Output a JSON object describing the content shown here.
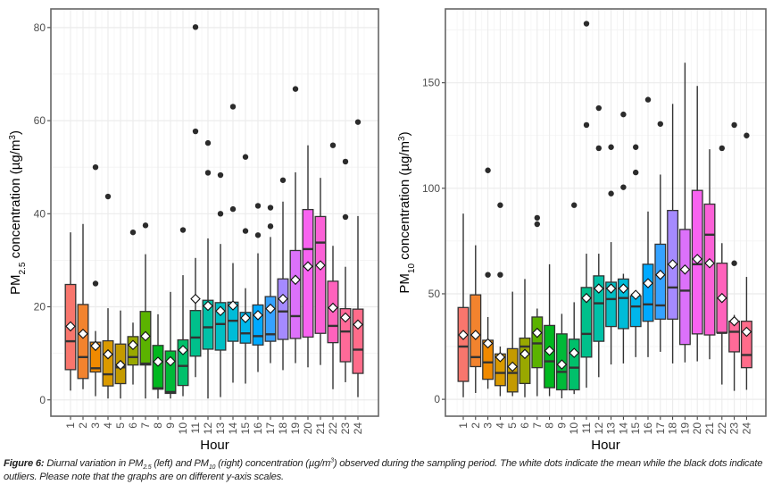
{
  "chart_data": [
    {
      "type": "box",
      "id": "pm25",
      "panel": "left",
      "title": "",
      "xlabel": "Hour",
      "ylabel_main": "PM",
      "ylabel_sub": "2.5",
      "ylabel_rest": " concentration (µg/m",
      "ylabel_sup": "3",
      "ylabel_close": ")",
      "ylim": [
        -3.5,
        84
      ],
      "yticks": [
        0,
        20,
        40,
        60,
        80
      ],
      "yminor": [
        10,
        30,
        50,
        70
      ],
      "categories": [
        "1",
        "2",
        "3",
        "4",
        "5",
        "6",
        "7",
        "8",
        "9",
        "10",
        "11",
        "12",
        "13",
        "14",
        "15",
        "16",
        "17",
        "18",
        "19",
        "20",
        "21",
        "22",
        "23",
        "24"
      ],
      "grid": true,
      "legend": "none",
      "series": [
        {
          "hour": "1",
          "color": "#F8766D",
          "whisker_low": 2,
          "q1": 6.5,
          "median": 12.6,
          "q3": 24.8,
          "whisker_high": 36,
          "mean": 15.8,
          "outliers": []
        },
        {
          "hour": "2",
          "color": "#F2832E",
          "whisker_low": 2.3,
          "q1": 4.6,
          "median": 9.2,
          "q3": 20.5,
          "whisker_high": 37.8,
          "mean": 14.2,
          "outliers": []
        },
        {
          "hour": "3",
          "color": "#F08A00",
          "whisker_low": 0.8,
          "q1": 6.0,
          "median": 6.8,
          "q3": 12.4,
          "whisker_high": 14.8,
          "mean": 11.6,
          "outliers": [
            25,
            50
          ]
        },
        {
          "hour": "4",
          "color": "#DA9A00",
          "whisker_low": 0.3,
          "q1": 3.0,
          "median": 5.5,
          "q3": 12.7,
          "whisker_high": 19.7,
          "mean": 9.8,
          "outliers": [
            43.7
          ]
        },
        {
          "hour": "5",
          "color": "#C49A00",
          "whisker_low": 0.3,
          "q1": 3.5,
          "median": 7.0,
          "q3": 12.0,
          "whisker_high": 19.2,
          "mean": 7.5,
          "outliers": []
        },
        {
          "hour": "6",
          "color": "#99A800",
          "whisker_low": 3.3,
          "q1": 7.5,
          "median": 9.2,
          "q3": 13.6,
          "whisker_high": 16.6,
          "mean": 11.8,
          "outliers": [
            36
          ]
        },
        {
          "hour": "7",
          "color": "#5BB300",
          "whisker_low": 0.3,
          "q1": 7.5,
          "median": 7.8,
          "q3": 19.0,
          "whisker_high": 31.3,
          "mean": 13.7,
          "outliers": [
            37.5
          ]
        },
        {
          "hour": "8",
          "color": "#00B81F",
          "whisker_low": 0.3,
          "q1": 2.3,
          "median": 2.5,
          "q3": 11.7,
          "whisker_high": 18.4,
          "mean": 8.2,
          "outliers": []
        },
        {
          "hour": "9",
          "color": "#00BA38",
          "whisker_low": 0.3,
          "q1": 1.4,
          "median": 1.7,
          "q3": 10.5,
          "whisker_high": 23.2,
          "mean": 8.3,
          "outliers": []
        },
        {
          "hour": "10",
          "color": "#00C06B",
          "whisker_low": 0.8,
          "q1": 3.1,
          "median": 7.3,
          "q3": 12.9,
          "whisker_high": 26.8,
          "mean": 10.7,
          "outliers": [
            36.5
          ]
        },
        {
          "hour": "11",
          "color": "#00C08B",
          "whisker_low": 4.9,
          "q1": 9.4,
          "median": 13.4,
          "q3": 19.2,
          "whisker_high": 30.5,
          "mean": 21.7,
          "outliers": [
            57.7,
            80.1
          ]
        },
        {
          "hour": "12",
          "color": "#00C1A7",
          "whisker_low": 0.3,
          "q1": 10.9,
          "median": 15.6,
          "q3": 21.4,
          "whisker_high": 34.7,
          "mean": 20.2,
          "outliers": [
            48.8,
            55.2
          ]
        },
        {
          "hour": "13",
          "color": "#00BFC4",
          "whisker_low": 0.6,
          "q1": 10.7,
          "median": 16.3,
          "q3": 20.9,
          "whisker_high": 33.5,
          "mean": 19.1,
          "outliers": [
            40,
            48.3
          ]
        },
        {
          "hour": "14",
          "color": "#00BCD8",
          "whisker_low": 3.7,
          "q1": 12.6,
          "median": 17.0,
          "q3": 21.0,
          "whisker_high": 29.4,
          "mean": 20.3,
          "outliers": [
            41,
            63
          ]
        },
        {
          "hour": "15",
          "color": "#00B6EB",
          "whisker_low": 3.5,
          "q1": 12.2,
          "median": 14.3,
          "q3": 18.8,
          "whisker_high": 24.0,
          "mean": 17.6,
          "outliers": [
            36.3,
            52.2
          ]
        },
        {
          "hour": "16",
          "color": "#00A9FF",
          "whisker_low": 6.0,
          "q1": 11.8,
          "median": 13.7,
          "q3": 20.4,
          "whisker_high": 31.5,
          "mean": 18.2,
          "outliers": [
            35.4,
            41.7
          ]
        },
        {
          "hour": "17",
          "color": "#35A2FF",
          "whisker_low": 7.9,
          "q1": 12.6,
          "median": 14.1,
          "q3": 22.2,
          "whisker_high": 35.0,
          "mean": 19.6,
          "outliers": [
            37.3,
            41.3
          ]
        },
        {
          "hour": "18",
          "color": "#A58AFF",
          "whisker_low": 6.4,
          "q1": 13.0,
          "median": 19.0,
          "q3": 26.0,
          "whisker_high": 42.6,
          "mean": 21.7,
          "outliers": [
            47.2
          ]
        },
        {
          "hour": "19",
          "color": "#DC71FA",
          "whisker_low": 7.9,
          "q1": 13.2,
          "median": 18.0,
          "q3": 32.1,
          "whisker_high": 48.9,
          "mean": 25.8,
          "outliers": [
            66.8
          ]
        },
        {
          "hour": "20",
          "color": "#F863F0",
          "whisker_low": 7.0,
          "q1": 13.5,
          "median": 32.4,
          "q3": 40.9,
          "whisker_high": 54.7,
          "mean": 28.7,
          "outliers": []
        },
        {
          "hour": "21",
          "color": "#FB61D7",
          "whisker_low": 7.5,
          "q1": 14.3,
          "median": 33.8,
          "q3": 39.4,
          "whisker_high": 47.7,
          "mean": 28.9,
          "outliers": []
        },
        {
          "hour": "22",
          "color": "#FF62BC",
          "whisker_low": 2.3,
          "q1": 12.3,
          "median": 15.9,
          "q3": 25.5,
          "whisker_high": 33.1,
          "mean": 19.8,
          "outliers": [
            54.7
          ]
        },
        {
          "hour": "23",
          "color": "#FF6A98",
          "whisker_low": 3.8,
          "q1": 8.2,
          "median": 14.7,
          "q3": 19.6,
          "whisker_high": 28.6,
          "mean": 17.7,
          "outliers": [
            39.3,
            51.2
          ]
        },
        {
          "hour": "24",
          "color": "#FF6C8A",
          "whisker_low": 0.6,
          "q1": 5.7,
          "median": 10.8,
          "q3": 19.5,
          "whisker_high": 39.5,
          "mean": 16.2,
          "outliers": [
            59.7
          ]
        }
      ]
    },
    {
      "type": "box",
      "id": "pm10",
      "panel": "right",
      "title": "",
      "xlabel": "Hour",
      "ylabel_main": "PM",
      "ylabel_sub": "10",
      "ylabel_rest": " concentration (µg/m",
      "ylabel_sup": "3",
      "ylabel_close": ")",
      "ylim": [
        -8,
        185
      ],
      "yticks": [
        0,
        50,
        100,
        150
      ],
      "yminor": [
        25,
        75,
        125,
        175
      ],
      "categories": [
        "1",
        "2",
        "3",
        "4",
        "5",
        "6",
        "7",
        "8",
        "9",
        "10",
        "11",
        "12",
        "13",
        "14",
        "15",
        "16",
        "17",
        "18",
        "19",
        "20",
        "21",
        "22",
        "23",
        "24"
      ],
      "grid": true,
      "legend": "none",
      "series": [
        {
          "hour": "1",
          "color": "#F8766D",
          "whisker_low": 1,
          "q1": 8.5,
          "median": 25,
          "q3": 43.5,
          "whisker_high": 88,
          "mean": 30.5,
          "outliers": []
        },
        {
          "hour": "2",
          "color": "#F2832E",
          "whisker_low": 3,
          "q1": 15.5,
          "median": 20,
          "q3": 49.5,
          "whisker_high": 73,
          "mean": 30.5,
          "outliers": []
        },
        {
          "hour": "3",
          "color": "#F08A00",
          "whisker_low": 5,
          "q1": 9.5,
          "median": 17.5,
          "q3": 28,
          "whisker_high": 39,
          "mean": 26.5,
          "outliers": [
            59,
            108.5
          ]
        },
        {
          "hour": "4",
          "color": "#DA9A00",
          "whisker_low": 1.5,
          "q1": 6.5,
          "median": 12.5,
          "q3": 21.5,
          "whisker_high": 25,
          "mean": 20,
          "outliers": [
            59,
            92
          ]
        },
        {
          "hour": "5",
          "color": "#C49A00",
          "whisker_low": 1.5,
          "q1": 3.5,
          "median": 12.5,
          "q3": 24,
          "whisker_high": 51,
          "mean": 15.5,
          "outliers": []
        },
        {
          "hour": "6",
          "color": "#99A800",
          "whisker_low": 1,
          "q1": 7.5,
          "median": 25,
          "q3": 29,
          "whisker_high": 57,
          "mean": 21.5,
          "outliers": []
        },
        {
          "hour": "7",
          "color": "#5BB300",
          "whisker_low": 1.5,
          "q1": 15,
          "median": 26.5,
          "q3": 39,
          "whisker_high": 43,
          "mean": 31.5,
          "outliers": [
            83,
            86
          ]
        },
        {
          "hour": "8",
          "color": "#00B81F",
          "whisker_low": 1.5,
          "q1": 5.5,
          "median": 18,
          "q3": 35,
          "whisker_high": 64,
          "mean": 23,
          "outliers": []
        },
        {
          "hour": "9",
          "color": "#00BA38",
          "whisker_low": 0.5,
          "q1": 4.5,
          "median": 13,
          "q3": 31,
          "whisker_high": 40.5,
          "mean": 16.5,
          "outliers": []
        },
        {
          "hour": "10",
          "color": "#00C06B",
          "whisker_low": 2.5,
          "q1": 4.5,
          "median": 15,
          "q3": 28.5,
          "whisker_high": 46,
          "mean": 22,
          "outliers": [
            92
          ]
        },
        {
          "hour": "11",
          "color": "#00C08B",
          "whisker_low": 5.5,
          "q1": 20,
          "median": 31,
          "q3": 53,
          "whisker_high": 69,
          "mean": 48,
          "outliers": [
            130,
            178
          ]
        },
        {
          "hour": "12",
          "color": "#00C1A7",
          "whisker_low": 10.5,
          "q1": 27.5,
          "median": 45.5,
          "q3": 58.5,
          "whisker_high": 69,
          "mean": 52.5,
          "outliers": [
            119,
            138
          ]
        },
        {
          "hour": "13",
          "color": "#00BFC4",
          "whisker_low": 16.5,
          "q1": 34.5,
          "median": 47.5,
          "q3": 55.5,
          "whisker_high": 74.5,
          "mean": 52.5,
          "outliers": [
            97.5,
            119.5
          ]
        },
        {
          "hour": "14",
          "color": "#00BCD8",
          "whisker_low": 17,
          "q1": 33.5,
          "median": 48,
          "q3": 57,
          "whisker_high": 59.5,
          "mean": 52.5,
          "outliers": [
            100.5,
            135
          ]
        },
        {
          "hour": "15",
          "color": "#00B6EB",
          "whisker_low": 20,
          "q1": 34.5,
          "median": 44,
          "q3": 49,
          "whisker_high": 49,
          "mean": 49.5,
          "outliers": [
            107.5,
            119.5
          ]
        },
        {
          "hour": "16",
          "color": "#00A9FF",
          "whisker_low": 20,
          "q1": 37,
          "median": 45,
          "q3": 64,
          "whisker_high": 89,
          "mean": 55,
          "outliers": [
            142
          ]
        },
        {
          "hour": "17",
          "color": "#35A2FF",
          "whisker_low": 22.5,
          "q1": 38,
          "median": 44.5,
          "q3": 73.5,
          "whisker_high": 106.5,
          "mean": 59,
          "outliers": [
            130.5
          ]
        },
        {
          "hour": "18",
          "color": "#A58AFF",
          "whisker_low": 17,
          "q1": 38,
          "median": 53,
          "q3": 89.5,
          "whisker_high": 140,
          "mean": 64,
          "outliers": []
        },
        {
          "hour": "19",
          "color": "#DC71FA",
          "whisker_low": 17.5,
          "q1": 26,
          "median": 51.5,
          "q3": 80.5,
          "whisker_high": 159.5,
          "mean": 61.5,
          "outliers": []
        },
        {
          "hour": "20",
          "color": "#F863F0",
          "whisker_low": 18,
          "q1": 31,
          "median": 64,
          "q3": 99,
          "whisker_high": 148.5,
          "mean": 66.5,
          "outliers": []
        },
        {
          "hour": "21",
          "color": "#FB61D7",
          "whisker_low": 19,
          "q1": 30.5,
          "median": 78,
          "q3": 92.5,
          "whisker_high": 118.5,
          "mean": 64.5,
          "outliers": []
        },
        {
          "hour": "22",
          "color": "#FF62BC",
          "whisker_low": 7,
          "q1": 31.5,
          "median": 31.5,
          "q3": 64.5,
          "whisker_high": 74,
          "mean": 48,
          "outliers": [
            119
          ]
        },
        {
          "hour": "23",
          "color": "#FF6A98",
          "whisker_low": 4,
          "q1": 22.5,
          "median": 32,
          "q3": 37,
          "whisker_high": 40,
          "mean": 37,
          "outliers": [
            64.5,
            130
          ]
        },
        {
          "hour": "24",
          "color": "#FF6C8A",
          "whisker_low": 4.5,
          "q1": 15,
          "median": 21,
          "q3": 37,
          "whisker_high": 58,
          "mean": 32,
          "outliers": [
            125
          ]
        }
      ]
    }
  ],
  "caption": {
    "label": "Figure 6:",
    "t1": " Diurnal variation in PM",
    "s1": "2.5",
    "t2": " (left) and PM",
    "s2": "10",
    "t3": " (right) concentration (µg/m",
    "sup": "3",
    "t4": ") observed during the sampling period. The white dots indicate the mean while the black dots indicate outliers. Please note that the graphs are on different y-axis scales."
  }
}
